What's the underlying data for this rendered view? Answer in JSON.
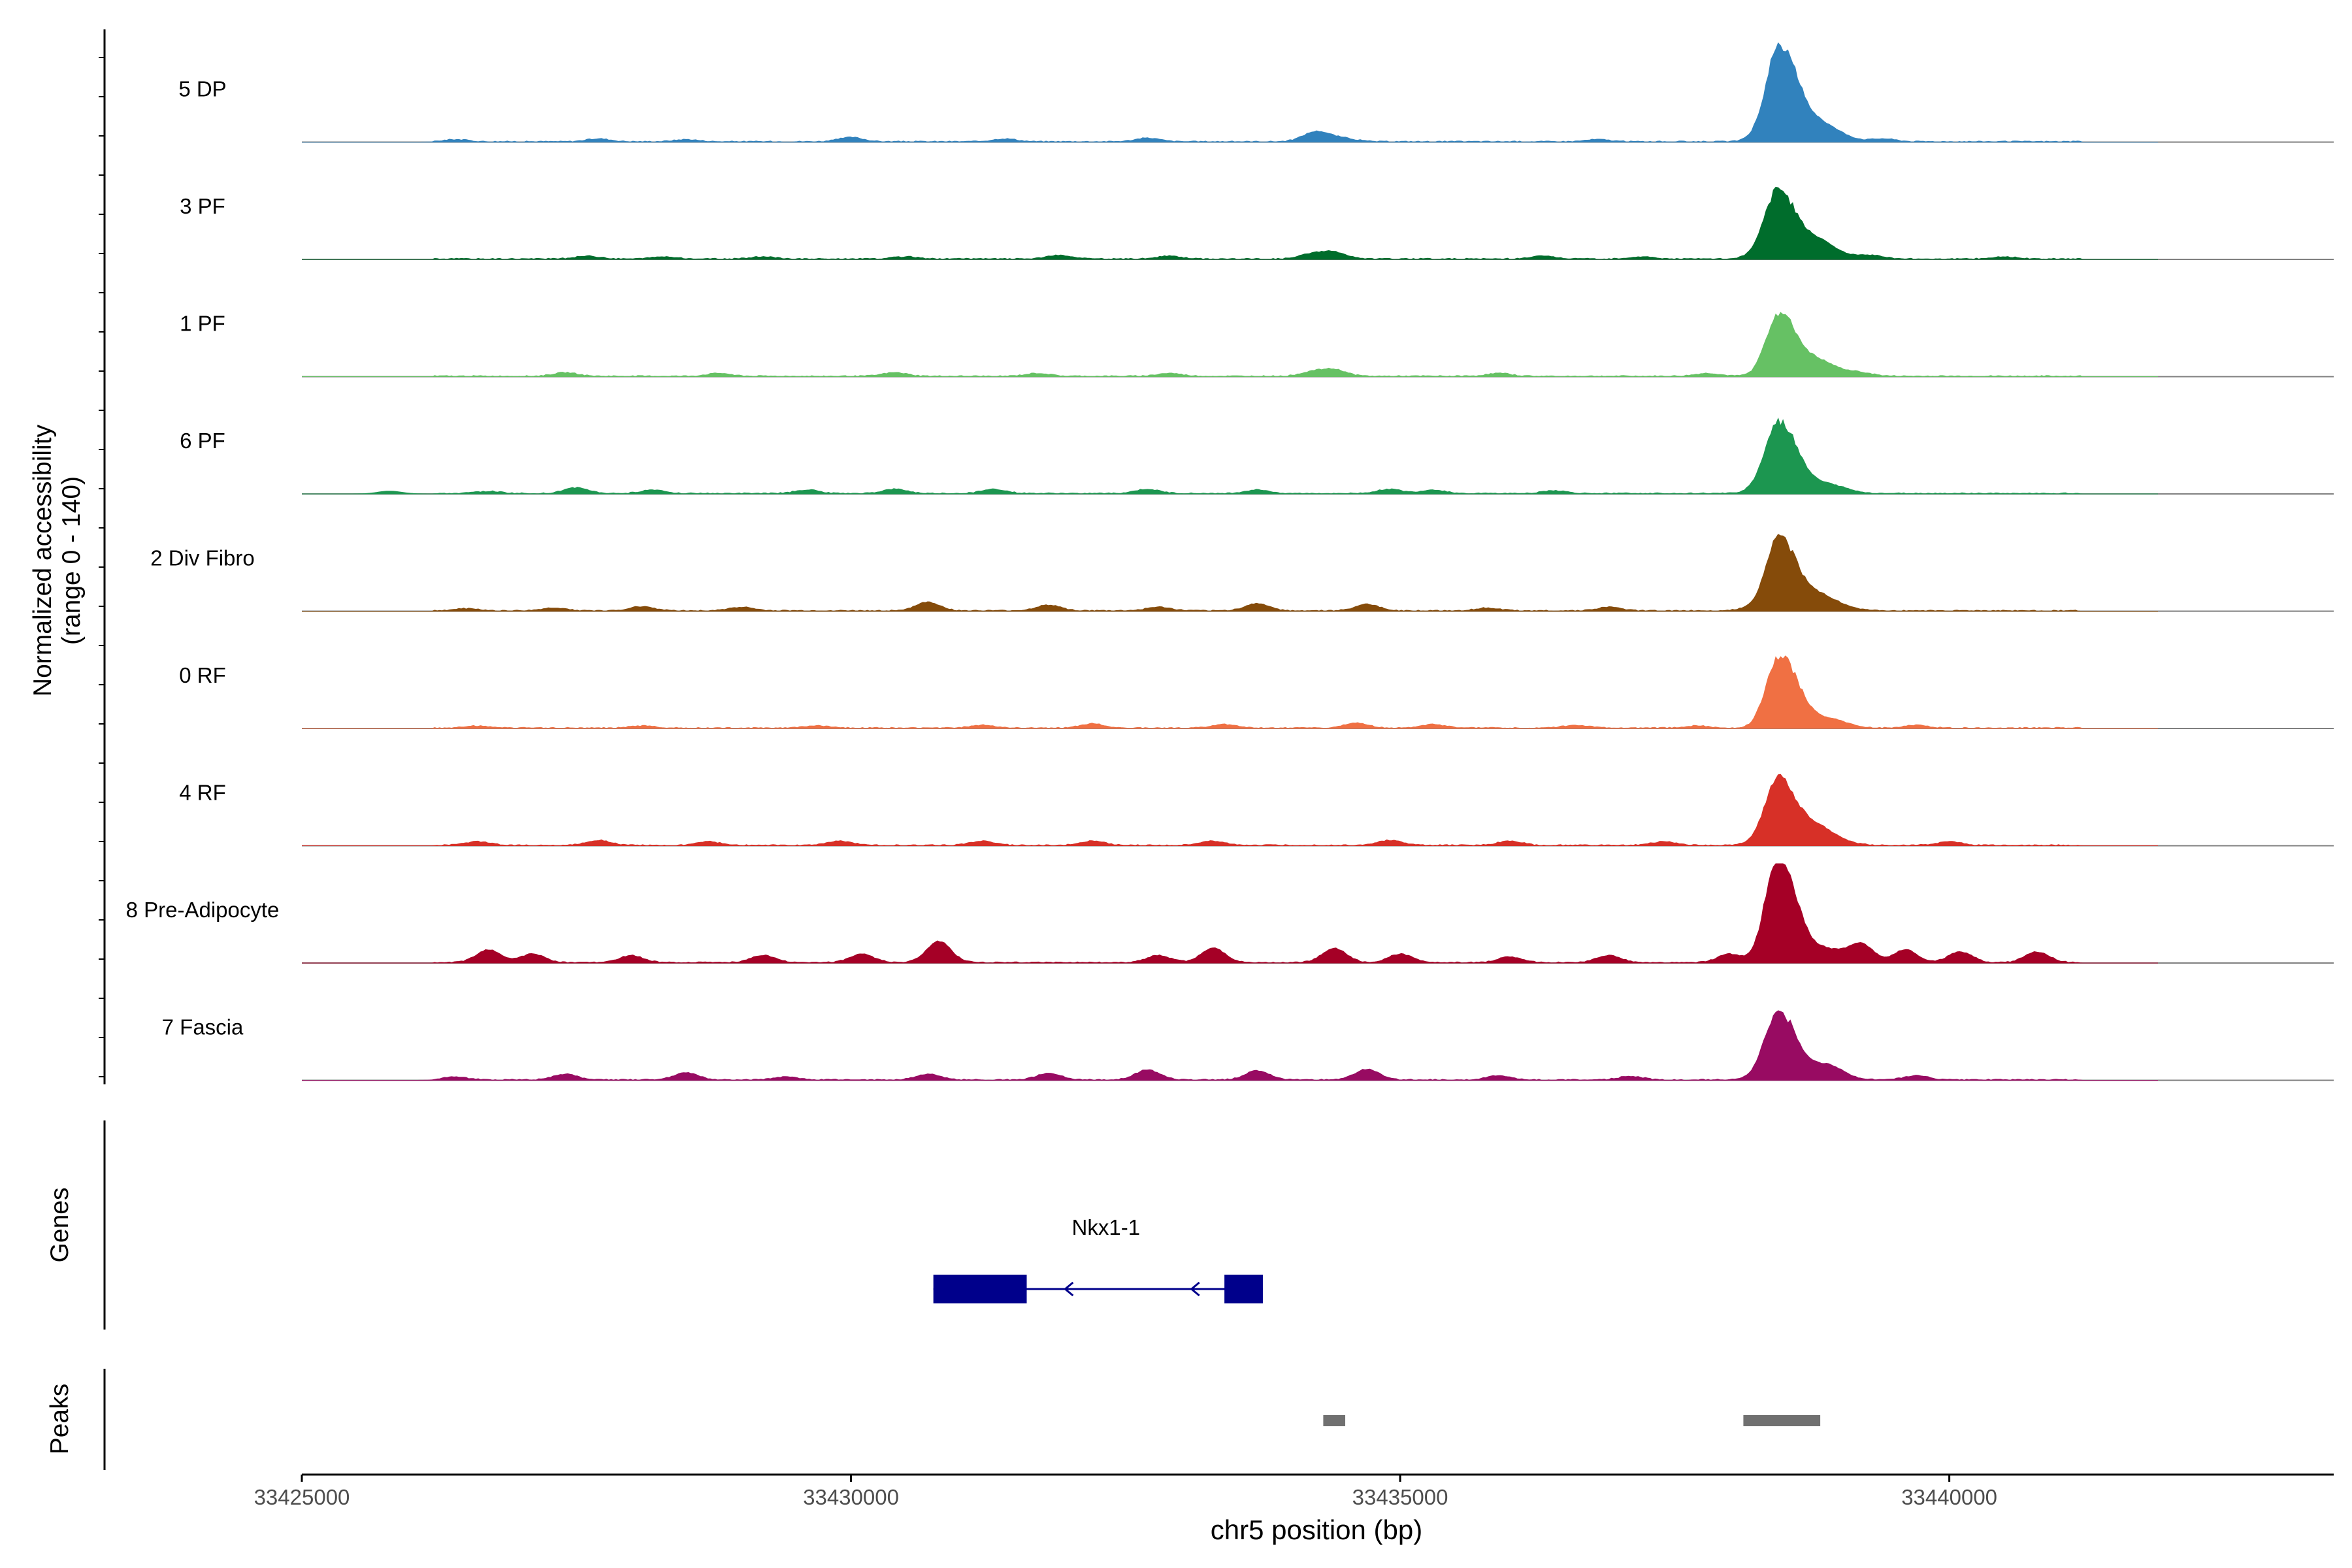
{
  "chart_data": {
    "type": "area",
    "title": "",
    "ylabel_line1": "Normalized accessibility",
    "ylabel_line2": "(range 0 - 140)",
    "xlabel": "chr5 position (bp)",
    "y_range": [
      0,
      140
    ],
    "x_range": [
      33425000,
      33443500
    ],
    "x_ticks": [
      {
        "value": 33425000,
        "label": "33425000"
      },
      {
        "value": 33430000,
        "label": "33430000"
      },
      {
        "value": 33435000,
        "label": "33435000"
      },
      {
        "value": 33440000,
        "label": "33440000"
      }
    ],
    "tracks": [
      {
        "name": "5 DP",
        "color": "#3182bd",
        "peak": 135,
        "blips": [
          [
            33426400,
            3
          ],
          [
            33427700,
            4
          ],
          [
            33428500,
            3
          ],
          [
            33430000,
            6
          ],
          [
            33431400,
            4
          ],
          [
            33432700,
            5
          ],
          [
            33434300,
            7
          ],
          [
            33434500,
            4
          ],
          [
            33434200,
            9
          ],
          [
            33436800,
            3
          ],
          [
            33438300,
            6
          ],
          [
            33438600,
            9
          ],
          [
            33438800,
            8
          ],
          [
            33439400,
            4
          ]
        ]
      },
      {
        "name": "3 PF",
        "color": "#006d2c",
        "peak": 100,
        "blips": [
          [
            33427600,
            4
          ],
          [
            33428300,
            3
          ],
          [
            33429200,
            3
          ],
          [
            33430500,
            3
          ],
          [
            33431900,
            5
          ],
          [
            33432900,
            4
          ],
          [
            33434200,
            7
          ],
          [
            33434400,
            9
          ],
          [
            33436300,
            4
          ],
          [
            33437200,
            3
          ],
          [
            33438300,
            10
          ],
          [
            33438800,
            12
          ],
          [
            33439300,
            5
          ],
          [
            33440500,
            3
          ]
        ]
      },
      {
        "name": "1 PF",
        "color": "#66c164",
        "peak": 95,
        "blips": [
          [
            33427400,
            5
          ],
          [
            33428800,
            4
          ],
          [
            33430400,
            5
          ],
          [
            33431700,
            4
          ],
          [
            33432900,
            4
          ],
          [
            33434200,
            6
          ],
          [
            33434400,
            9
          ],
          [
            33435900,
            4
          ],
          [
            33437800,
            4
          ],
          [
            33438800,
            8
          ],
          [
            33439200,
            4
          ]
        ]
      },
      {
        "name": "6 PF",
        "color": "#1c9650",
        "peak": 100,
        "blips": [
          [
            33425800,
            4
          ],
          [
            33426700,
            3
          ],
          [
            33427500,
            8
          ],
          [
            33428200,
            5
          ],
          [
            33429600,
            5
          ],
          [
            33430400,
            6
          ],
          [
            33431300,
            6
          ],
          [
            33432700,
            6
          ],
          [
            33433700,
            5
          ],
          [
            33434900,
            6
          ],
          [
            33435300,
            5
          ],
          [
            33436400,
            4
          ],
          [
            33438300,
            10
          ],
          [
            33438600,
            6
          ]
        ]
      },
      {
        "name": "2 Div Fibro",
        "color": "#854b0a",
        "peak": 110,
        "blips": [
          [
            33426500,
            3
          ],
          [
            33427300,
            4
          ],
          [
            33428100,
            6
          ],
          [
            33429000,
            5
          ],
          [
            33430700,
            12
          ],
          [
            33431800,
            8
          ],
          [
            33432800,
            5
          ],
          [
            33433700,
            10
          ],
          [
            33434700,
            9
          ],
          [
            33435800,
            4
          ],
          [
            33436900,
            5
          ],
          [
            33438200,
            4
          ],
          [
            33438800,
            7
          ]
        ]
      },
      {
        "name": "0 RF",
        "color": "#f07043",
        "peak": 105,
        "blips": [
          [
            33426600,
            3
          ],
          [
            33428100,
            3
          ],
          [
            33429700,
            3
          ],
          [
            33431200,
            4
          ],
          [
            33432200,
            6
          ],
          [
            33433400,
            5
          ],
          [
            33434600,
            7
          ],
          [
            33435300,
            5
          ],
          [
            33436600,
            4
          ],
          [
            33437700,
            3
          ],
          [
            33438600,
            5
          ],
          [
            33439700,
            4
          ]
        ]
      },
      {
        "name": "4 RF",
        "color": "#d73027",
        "peak": 100,
        "blips": [
          [
            33426600,
            5
          ],
          [
            33427700,
            7
          ],
          [
            33428700,
            5
          ],
          [
            33429900,
            6
          ],
          [
            33431200,
            6
          ],
          [
            33432200,
            6
          ],
          [
            33433300,
            6
          ],
          [
            33434900,
            7
          ],
          [
            33436000,
            6
          ],
          [
            33437400,
            5
          ],
          [
            33438300,
            7
          ],
          [
            33438800,
            12
          ],
          [
            33440000,
            5
          ]
        ]
      },
      {
        "name": "8 Pre-Adipocyte",
        "color": "#a50026",
        "peak": 140,
        "blips": [
          [
            33426700,
            18
          ],
          [
            33427100,
            12
          ],
          [
            33428000,
            10
          ],
          [
            33429200,
            10
          ],
          [
            33430100,
            12
          ],
          [
            33430800,
            30
          ],
          [
            33432800,
            10
          ],
          [
            33433300,
            20
          ],
          [
            33434400,
            20
          ],
          [
            33435000,
            12
          ],
          [
            33436000,
            8
          ],
          [
            33436900,
            10
          ],
          [
            33438000,
            12
          ],
          [
            33438400,
            22
          ],
          [
            33439200,
            25
          ],
          [
            33439600,
            18
          ],
          [
            33440100,
            15
          ],
          [
            33440800,
            15
          ]
        ]
      },
      {
        "name": "7 Fascia",
        "color": "#980b62",
        "peak": 100,
        "blips": [
          [
            33426400,
            4
          ],
          [
            33427400,
            8
          ],
          [
            33428500,
            10
          ],
          [
            33429400,
            4
          ],
          [
            33430700,
            8
          ],
          [
            33431800,
            9
          ],
          [
            33432700,
            14
          ],
          [
            33433700,
            13
          ],
          [
            33434700,
            15
          ],
          [
            33435900,
            6
          ],
          [
            33437100,
            5
          ],
          [
            33438300,
            8
          ],
          [
            33438900,
            8
          ],
          [
            33439700,
            6
          ]
        ]
      }
    ],
    "peak_center": 33438450,
    "genes": [
      {
        "name": "Nkx1-1",
        "strand": "-",
        "start": 33430750,
        "end": 33433750,
        "exons": [
          [
            33430750,
            33431600
          ],
          [
            33433400,
            33433750
          ]
        ],
        "color": "#00008b"
      }
    ],
    "peak_regions": [
      [
        33434300,
        33434500
      ],
      [
        33438125,
        33438825
      ]
    ],
    "genes_label": "Genes",
    "peaks_label": "Peaks",
    "baseline_color": "#808080",
    "peak_color": "#707070"
  }
}
